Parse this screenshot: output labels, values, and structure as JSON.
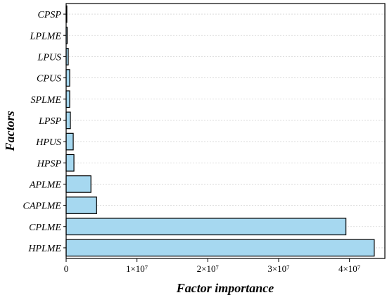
{
  "chart_data": {
    "type": "bar",
    "orientation": "horizontal",
    "xlabel": "Factor importance",
    "ylabel": "Factors",
    "xlim": [
      0,
      45000000
    ],
    "x_ticks": [
      {
        "value": 0,
        "label": "0"
      },
      {
        "value": 10000000,
        "label": "1×10⁷"
      },
      {
        "value": 20000000,
        "label": "2×10⁷"
      },
      {
        "value": 30000000,
        "label": "3×10⁷"
      },
      {
        "value": 40000000,
        "label": "4×10⁷"
      }
    ],
    "categories": [
      "HPLME",
      "CPLME",
      "CAPLME",
      "APLME",
      "HPSP",
      "HPUS",
      "LPSP",
      "SPLME",
      "CPUS",
      "LPUS",
      "LPLME",
      "CPSP"
    ],
    "values": [
      43500000,
      39500000,
      4300000,
      3500000,
      1100000,
      1000000,
      600000,
      500000,
      500000,
      300000,
      150000,
      50000
    ],
    "bar_color": "#a6d8f0",
    "grid": true
  }
}
